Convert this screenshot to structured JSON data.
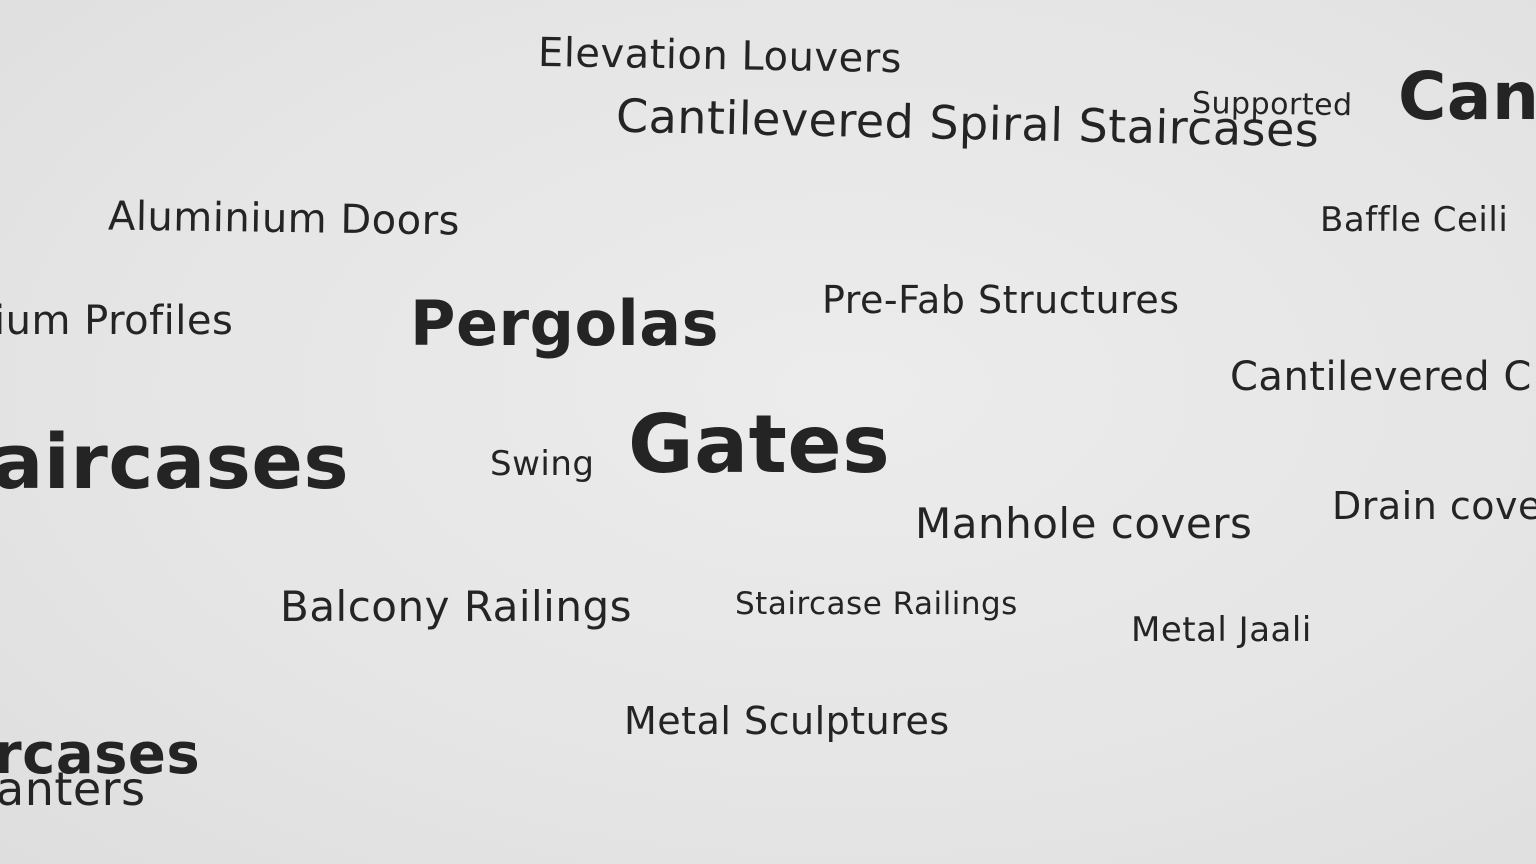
{
  "words": {
    "elevation_louvers": "Elevation Louvers",
    "cantilevered_spiral": "Cantilevered Spiral Staircases",
    "supported": "Supported",
    "can_partial": "Can",
    "aluminium_doors": "Aluminium Doors",
    "baffle_partial": "Baffle Ceili",
    "profiles_partial": "ium Profiles",
    "pergolas": "Pergolas",
    "prefab": "Pre-Fab Structures",
    "cantilevered_partial": "Cantilevered C",
    "staircases_partial": "aircases",
    "swing": "Swing",
    "gates": "Gates",
    "manhole": "Manhole covers",
    "drain_partial": "Drain cove",
    "balcony": "Balcony Railings",
    "staircase_railings": "Staircase Railings",
    "metal_jaali": "Metal Jaali",
    "metal_sculptures": "Metal Sculptures",
    "rcases_partial": "rcases",
    "planters_partial": "anters"
  }
}
